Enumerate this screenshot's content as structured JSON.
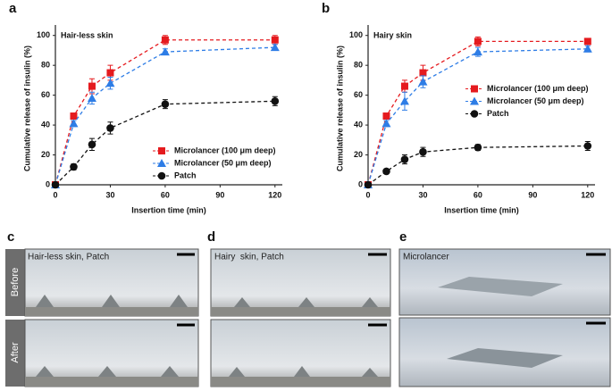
{
  "chart_data": [
    {
      "type": "line",
      "panel": "a",
      "title": "Hair-less skin",
      "xlabel": "Insertion time (min)",
      "ylabel": "Cumulative release of insulin (%)",
      "x": [
        0,
        10,
        20,
        30,
        60,
        120
      ],
      "series": [
        {
          "name": "Microlancer (100 μm deep)",
          "color": "#e51a1e",
          "marker": "square",
          "values": [
            0,
            46,
            66,
            75,
            97,
            97
          ],
          "errors": [
            0,
            2,
            5,
            5,
            3,
            3
          ]
        },
        {
          "name": "Microlancer (50 μm deep)",
          "color": "#2e7de6",
          "marker": "triangle",
          "values": [
            0,
            41,
            58,
            68,
            89,
            92
          ],
          "errors": [
            0,
            2,
            4,
            4,
            2,
            2
          ]
        },
        {
          "name": "Patch",
          "color": "#111111",
          "marker": "circle",
          "values": [
            0,
            12,
            27,
            38,
            54,
            56
          ],
          "errors": [
            0,
            2,
            4,
            4,
            3,
            3
          ]
        }
      ],
      "xlim": [
        0,
        124
      ],
      "ylim": [
        0,
        107
      ],
      "xticks": [
        0,
        30,
        60,
        90,
        120
      ],
      "yticks": [
        0,
        20,
        40,
        60,
        80,
        100
      ],
      "grid": false,
      "legend": "lower right"
    },
    {
      "type": "line",
      "panel": "b",
      "title": "Hairy skin",
      "xlabel": "Insertion time (min)",
      "ylabel": "Cumulative release of insulin (%)",
      "x": [
        0,
        10,
        20,
        30,
        60,
        120
      ],
      "series": [
        {
          "name": "Microlancer (100 μm deep)",
          "color": "#e51a1e",
          "marker": "square",
          "values": [
            0,
            46,
            66,
            75,
            96,
            96
          ],
          "errors": [
            0,
            2,
            4,
            5,
            3,
            2
          ]
        },
        {
          "name": "Microlancer (50 μm deep)",
          "color": "#2e7de6",
          "marker": "triangle",
          "values": [
            0,
            41,
            56,
            69,
            89,
            91
          ],
          "errors": [
            0,
            2,
            6,
            4,
            3,
            2
          ]
        },
        {
          "name": "Patch",
          "color": "#111111",
          "marker": "circle",
          "values": [
            0,
            9,
            17,
            22,
            25,
            26
          ],
          "errors": [
            0,
            1,
            3,
            3,
            2,
            3
          ]
        }
      ],
      "xlim": [
        0,
        124
      ],
      "ylim": [
        0,
        107
      ],
      "xticks": [
        0,
        30,
        60,
        90,
        120
      ],
      "yticks": [
        0,
        20,
        40,
        60,
        80,
        100
      ],
      "grid": false,
      "legend": "center right"
    }
  ],
  "photo_panels": [
    {
      "panel": "c",
      "caption": "Hair-less skin, Patch"
    },
    {
      "panel": "d",
      "caption": "Hairy  skin, Patch"
    },
    {
      "panel": "e",
      "caption": "Microlancer"
    }
  ],
  "row_labels": [
    "Before",
    "After"
  ]
}
